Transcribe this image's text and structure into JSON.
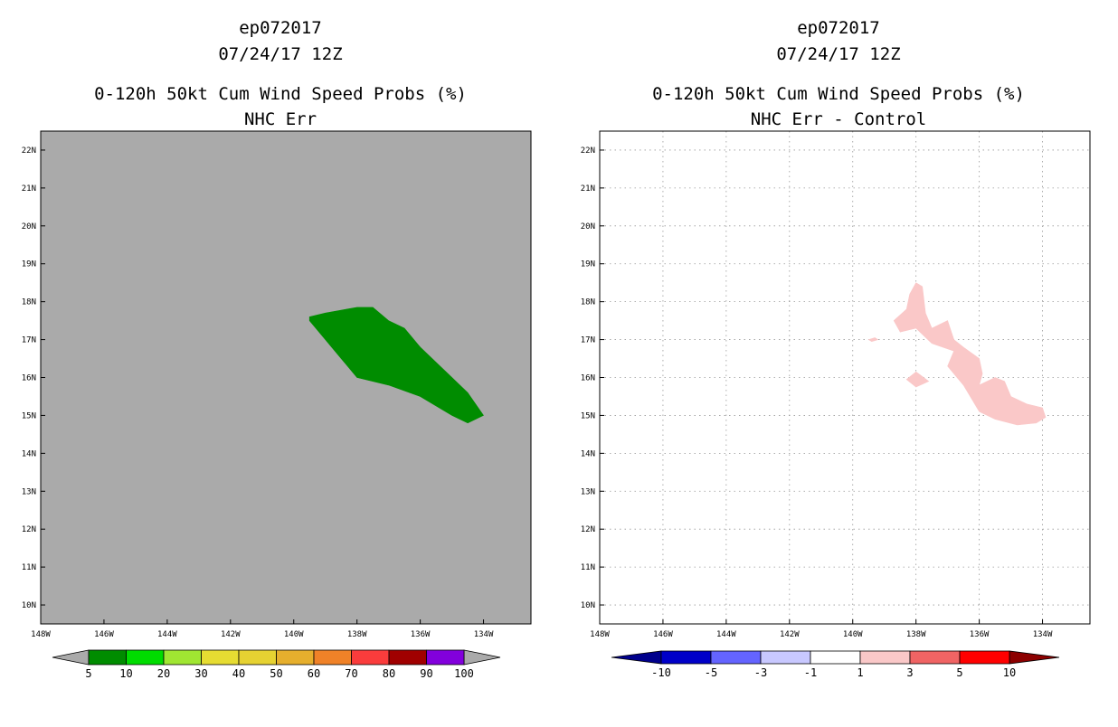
{
  "chart_data": [
    {
      "type": "heatmap",
      "id": "left",
      "title": [
        "ep072017",
        "07/24/17 12Z",
        "0-120h 50kt Cum Wind Speed Probs (%)",
        "NHC Err"
      ],
      "background": "#aaaaaa",
      "xlim": [
        -148,
        -132.5
      ],
      "ylim": [
        9.5,
        22.5
      ],
      "xticks": [
        "148W",
        "146W",
        "144W",
        "142W",
        "140W",
        "138W",
        "136W",
        "134W"
      ],
      "yticks": [
        "10N",
        "11N",
        "12N",
        "13N",
        "14N",
        "15N",
        "16N",
        "17N",
        "18N",
        "19N",
        "20N",
        "21N",
        "22N"
      ],
      "regions": [
        {
          "level": "5-10",
          "color": "#008c00",
          "points": [
            [
              -139.5,
              17.6
            ],
            [
              -139.0,
              17.7
            ],
            [
              -138.0,
              17.85
            ],
            [
              -137.5,
              17.85
            ],
            [
              -137.0,
              17.5
            ],
            [
              -136.5,
              17.3
            ],
            [
              -136.0,
              16.8
            ],
            [
              -135.5,
              16.4
            ],
            [
              -135.0,
              16.0
            ],
            [
              -134.5,
              15.6
            ],
            [
              -134.0,
              15.0
            ],
            [
              -134.5,
              14.8
            ],
            [
              -135.0,
              15.0
            ],
            [
              -136.0,
              15.5
            ],
            [
              -137.0,
              15.8
            ],
            [
              -138.0,
              16.0
            ],
            [
              -138.5,
              16.5
            ],
            [
              -139.0,
              17.0
            ],
            [
              -139.5,
              17.5
            ]
          ]
        }
      ],
      "colorbar": {
        "colors": [
          "#008c00",
          "#00dc00",
          "#a0e632",
          "#e6dc32",
          "#e6d232",
          "#e6af2d",
          "#f08228",
          "#fa3c3c",
          "#a00000",
          "#8200dc"
        ],
        "end_colors": [
          "#aaaaaa",
          "#aaaaaa"
        ],
        "labels": [
          "5",
          "10",
          "20",
          "30",
          "40",
          "50",
          "60",
          "70",
          "80",
          "90",
          "100"
        ]
      }
    },
    {
      "type": "heatmap",
      "id": "right",
      "title": [
        "ep072017",
        "07/24/17 12Z",
        "0-120h 50kt Cum Wind Speed Probs (%)",
        "NHC Err - Control"
      ],
      "background": "#ffffff",
      "xlim": [
        -148,
        -132.5
      ],
      "ylim": [
        9.5,
        22.5
      ],
      "xticks": [
        "148W",
        "146W",
        "144W",
        "142W",
        "140W",
        "138W",
        "136W",
        "134W"
      ],
      "yticks": [
        "10N",
        "11N",
        "12N",
        "13N",
        "14N",
        "15N",
        "16N",
        "17N",
        "18N",
        "19N",
        "20N",
        "21N",
        "22N"
      ],
      "regions": [
        {
          "level": "1-3",
          "color": "#fac8c8",
          "points": [
            [
              -138.0,
              18.5
            ],
            [
              -137.8,
              18.4
            ],
            [
              -137.7,
              17.7
            ],
            [
              -137.5,
              17.3
            ],
            [
              -137.0,
              17.5
            ],
            [
              -136.8,
              17.0
            ],
            [
              -136.5,
              16.8
            ],
            [
              -136.0,
              16.5
            ],
            [
              -135.9,
              16.1
            ],
            [
              -136.0,
              15.8
            ],
            [
              -135.5,
              16.0
            ],
            [
              -135.2,
              15.9
            ],
            [
              -135.0,
              15.5
            ],
            [
              -134.5,
              15.3
            ],
            [
              -134.0,
              15.2
            ],
            [
              -133.9,
              14.95
            ],
            [
              -134.2,
              14.8
            ],
            [
              -134.8,
              14.75
            ],
            [
              -135.5,
              14.9
            ],
            [
              -136.0,
              15.1
            ],
            [
              -136.5,
              15.8
            ],
            [
              -137.0,
              16.3
            ],
            [
              -136.8,
              16.7
            ],
            [
              -137.5,
              16.9
            ],
            [
              -138.0,
              17.3
            ],
            [
              -138.5,
              17.2
            ],
            [
              -138.7,
              17.5
            ],
            [
              -138.3,
              17.8
            ],
            [
              -138.2,
              18.2
            ]
          ]
        },
        {
          "level": "1-3",
          "color": "#fac8c8",
          "points": [
            [
              -139.5,
              17.0
            ],
            [
              -139.3,
              17.05
            ],
            [
              -139.2,
              17.0
            ],
            [
              -139.4,
              16.95
            ]
          ]
        },
        {
          "level": "1-3",
          "color": "#fac8c8",
          "points": [
            [
              -138.3,
              15.95
            ],
            [
              -138.0,
              16.15
            ],
            [
              -137.6,
              15.9
            ],
            [
              -138.0,
              15.75
            ]
          ]
        }
      ],
      "colorbar": {
        "colors": [
          "#0000c8",
          "#6464ff",
          "#c8c8ff",
          "#ffffff",
          "#fac8c8",
          "#f06464",
          "#ff0000"
        ],
        "end_colors": [
          "#00008c",
          "#8c0000"
        ],
        "labels": [
          "-10",
          "-5",
          "-3",
          "-1",
          "1",
          "3",
          "5",
          "10"
        ]
      }
    }
  ]
}
